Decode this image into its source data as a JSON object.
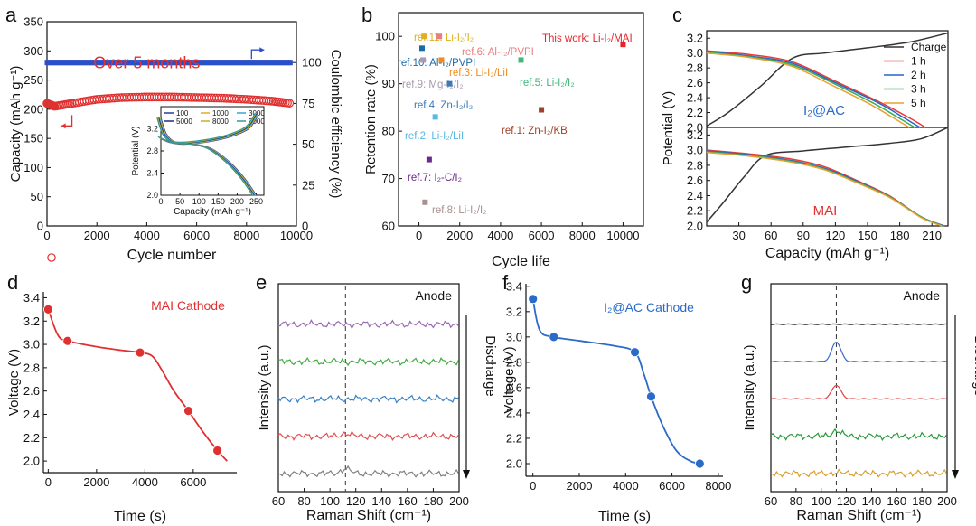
{
  "chart_data": [
    {
      "panel": "a",
      "type": "scatter",
      "xlabel": "Cycle number",
      "ylabel": "Capacity (mAh g⁻¹)",
      "ylabel_right": "Coulombic efficiency (%)",
      "xlim": [
        0,
        10000
      ],
      "ylim": [
        0,
        350
      ],
      "ylim_right": [
        0,
        125
      ],
      "xticks": [
        0,
        2000,
        4000,
        6000,
        8000,
        10000
      ],
      "yticks": [
        0,
        50,
        100,
        150,
        200,
        250,
        300,
        350
      ],
      "yticks_right": [
        0,
        25,
        50,
        75,
        100
      ],
      "annotation": "Over 5 months",
      "series": [
        {
          "name": "Capacity",
          "color": "#e03030",
          "x": [
            0,
            300,
            1000,
            2000,
            3000,
            4000,
            5000,
            6000,
            7000,
            8000,
            9000,
            9800
          ],
          "y": [
            210,
            205,
            210,
            217,
            220,
            221,
            221,
            220,
            219,
            217,
            214,
            210
          ]
        },
        {
          "name": "Coulombic efficiency",
          "color": "#2a4fc8",
          "x": [
            0,
            2000,
            4000,
            6000,
            8000,
            9800
          ],
          "y": [
            100,
            100,
            100,
            100,
            100,
            100
          ]
        }
      ],
      "inset": {
        "xlabel": "Capacity (mAh g⁻¹)",
        "ylabel": "Potential (V)",
        "xlim": [
          0,
          270
        ],
        "ylim": [
          2.0,
          3.6
        ],
        "xticks": [
          0,
          50,
          100,
          150,
          200,
          250
        ],
        "yticks": [
          2.0,
          2.4,
          2.8,
          3.2
        ],
        "legend": [
          {
            "label": "100",
            "color": "#2a3f9c"
          },
          {
            "label": "1000",
            "color": "#e0b020"
          },
          {
            "label": "3000",
            "color": "#30a8d8"
          },
          {
            "label": "5000",
            "color": "#1d2e78"
          },
          {
            "label": "8000",
            "color": "#c8b020"
          },
          {
            "label": "9000",
            "color": "#2c9aa0"
          }
        ],
        "charge": {
          "x": [
            0,
            25,
            60,
            120,
            180,
            230,
            255
          ],
          "y": [
            3.02,
            2.95,
            2.92,
            2.96,
            3.05,
            3.2,
            3.45
          ]
        },
        "discharge": {
          "x": [
            0,
            15,
            40,
            80,
            130,
            180,
            220,
            250
          ],
          "y": [
            3.4,
            3.1,
            2.95,
            2.93,
            2.85,
            2.6,
            2.3,
            2.0
          ]
        }
      }
    },
    {
      "panel": "b",
      "type": "scatter",
      "xlabel": "Cycle life",
      "ylabel": "Retention rate (%)",
      "xlim": [
        -1000,
        11000
      ],
      "ylim": [
        60,
        105
      ],
      "xticks": [
        0,
        2000,
        4000,
        6000,
        8000,
        10000
      ],
      "yticks": [
        60,
        70,
        80,
        90,
        100
      ],
      "points": [
        {
          "label": "This work: Li-I₂/MAI",
          "x": 10000,
          "y": 98.3,
          "color": "#e8232a"
        },
        {
          "label": "ref.11: Li-I₂/I₂",
          "x": 250,
          "y": 100,
          "color": "#e0b020"
        },
        {
          "label": "ref.6: Al-I₂/PVPI",
          "x": 1000,
          "y": 100,
          "color": "#e87e80"
        },
        {
          "label": "ref.10: Al-I₂/PVPI",
          "x": 150,
          "y": 97.5,
          "color": "#1a6aa8"
        },
        {
          "label": "ref.3: Li-I₂/LiI",
          "x": 1100,
          "y": 95,
          "color": "#f08c20"
        },
        {
          "label": "ref.5: Li-I₂/I₂",
          "x": 5000,
          "y": 95,
          "color": "#40b878"
        },
        {
          "label": "ref.9: Mg-I₂/I₂",
          "x": 200,
          "y": 95,
          "color": "#a89ab0"
        },
        {
          "label": "ref.4: Zn-I₂/I₂",
          "x": 1500,
          "y": 90,
          "color": "#3a7ab8"
        },
        {
          "label": "ref.2: Li-I₂/LiI",
          "x": 800,
          "y": 83,
          "color": "#58b8e0"
        },
        {
          "label": "ref.1: Zn-I₂/KB",
          "x": 6000,
          "y": 84.5,
          "color": "#a04028"
        },
        {
          "label": "ref.7: I₂-C/I₂",
          "x": 500,
          "y": 74,
          "color": "#6a2a88"
        },
        {
          "label": "ref.8: Li-I₂/I₂",
          "x": 300,
          "y": 65,
          "color": "#a89090"
        }
      ]
    },
    {
      "panel": "c",
      "type": "line",
      "xlabel": "Capacity (mAh g⁻¹)",
      "ylabel": "Potential (V)",
      "xlim": [
        0,
        225
      ],
      "ylim": [
        2.0,
        3.3
      ],
      "xticks": [
        30,
        60,
        90,
        120,
        150,
        180,
        210
      ],
      "yticks": [
        2.0,
        2.2,
        2.4,
        2.6,
        2.8,
        3.0,
        3.2
      ],
      "legend": [
        {
          "label": "Charge",
          "color": "#333333"
        },
        {
          "label": "1 h",
          "color": "#e83a3a"
        },
        {
          "label": "2 h",
          "color": "#2a64c8"
        },
        {
          "label": "3 h",
          "color": "#3aaa58"
        },
        {
          "label": "5 h",
          "color": "#e8a030"
        }
      ],
      "top_label": "I₂@AC",
      "bottom_label": "MAI",
      "top": {
        "charge": {
          "x": [
            0,
            20,
            50,
            80,
            110,
            150,
            190,
            225
          ],
          "y": [
            2.02,
            2.2,
            2.55,
            2.93,
            3.0,
            3.07,
            3.15,
            3.27
          ]
        },
        "discharge": [
          {
            "x": [
              0,
              40,
              80,
              120,
              160,
              190,
              204
            ],
            "y": [
              3.03,
              2.98,
              2.88,
              2.62,
              2.35,
              2.12,
              2.0
            ]
          },
          {
            "x": [
              0,
              40,
              80,
              120,
              160,
              185,
              199
            ],
            "y": [
              3.02,
              2.96,
              2.86,
              2.6,
              2.33,
              2.12,
              2.0
            ]
          },
          {
            "x": [
              0,
              40,
              80,
              120,
              155,
              180,
              194
            ],
            "y": [
              3.01,
              2.95,
              2.84,
              2.58,
              2.33,
              2.12,
              2.0
            ]
          },
          {
            "x": [
              0,
              40,
              80,
              115,
              150,
              175,
              189
            ],
            "y": [
              3.0,
              2.94,
              2.82,
              2.58,
              2.33,
              2.12,
              2.0
            ]
          }
        ]
      },
      "bottom": {
        "charge": {
          "x": [
            0,
            15,
            35,
            55,
            90,
            130,
            170,
            200,
            225
          ],
          "y": [
            2.05,
            2.3,
            2.65,
            2.93,
            2.99,
            3.04,
            3.09,
            3.15,
            3.3
          ]
        },
        "discharge": [
          {
            "x": [
              0,
              40,
              80,
              110,
              140,
              170,
              200,
              222
            ],
            "y": [
              3.0,
              2.95,
              2.88,
              2.78,
              2.6,
              2.4,
              2.12,
              2.0
            ]
          },
          {
            "x": [
              0,
              40,
              80,
              110,
              140,
              170,
              200,
              221
            ],
            "y": [
              2.99,
              2.94,
              2.86,
              2.76,
              2.59,
              2.39,
              2.12,
              2.0
            ]
          },
          {
            "x": [
              0,
              40,
              80,
              110,
              140,
              170,
              200,
              220
            ],
            "y": [
              2.98,
              2.93,
              2.85,
              2.75,
              2.58,
              2.39,
              2.12,
              2.0
            ]
          },
          {
            "x": [
              0,
              40,
              80,
              110,
              140,
              170,
              200,
              219
            ],
            "y": [
              2.97,
              2.92,
              2.84,
              2.74,
              2.57,
              2.38,
              2.11,
              2.0
            ]
          }
        ]
      }
    },
    {
      "panel": "d",
      "type": "line",
      "title": "MAI  Cathode",
      "xlabel": "Time (s)",
      "ylabel": "Voltage (V)",
      "xlim": [
        -200,
        7800
      ],
      "ylim": [
        1.9,
        3.45
      ],
      "xticks": [
        0,
        2000,
        4000,
        6000
      ],
      "yticks": [
        2.0,
        2.2,
        2.4,
        2.6,
        2.8,
        3.0,
        3.2,
        3.4
      ],
      "curve": {
        "x": [
          0,
          400,
          800,
          2000,
          3000,
          3800,
          4300,
          4700,
          5200,
          5800,
          6400,
          7000,
          7400
        ],
        "y": [
          3.3,
          3.08,
          3.03,
          2.98,
          2.95,
          2.93,
          2.9,
          2.78,
          2.6,
          2.43,
          2.25,
          2.09,
          2.0
        ]
      },
      "markers": {
        "x": [
          0,
          800,
          3800,
          5800,
          7000
        ],
        "y": [
          3.3,
          3.03,
          2.93,
          2.43,
          2.09
        ]
      },
      "color": "#e03030"
    },
    {
      "panel": "e",
      "type": "line",
      "xlabel": "Raman Shift (cm⁻¹)",
      "ylabel": "Intensity (a.u.)",
      "xlim": [
        60,
        200
      ],
      "xticks": [
        60,
        80,
        100,
        120,
        140,
        160,
        180,
        200
      ],
      "dashed_x": 112,
      "top_label": "Anode",
      "side_label": "Discharge",
      "traces": [
        {
          "color": "#9a6ab0",
          "offset": 5,
          "peak": 0.0
        },
        {
          "color": "#44aa44",
          "offset": 4,
          "peak": 0.0
        },
        {
          "color": "#3a80c0",
          "offset": 3,
          "peak": 0.0
        },
        {
          "color": "#e05050",
          "offset": 2,
          "peak": 0.15
        },
        {
          "color": "#808080",
          "offset": 1,
          "peak": 0.25
        }
      ]
    },
    {
      "panel": "f",
      "type": "line",
      "title": "I₂@AC Cathode",
      "xlabel": "Time (s)",
      "ylabel": "Voltage (V)",
      "xlim": [
        -300,
        8200
      ],
      "ylim": [
        1.9,
        3.42
      ],
      "xticks": [
        0,
        2000,
        4000,
        6000,
        8000
      ],
      "yticks": [
        2.0,
        2.2,
        2.4,
        2.6,
        2.8,
        3.0,
        3.2,
        3.4
      ],
      "curve": {
        "x": [
          0,
          300,
          900,
          2000,
          3500,
          4400,
          4800,
          5100,
          5600,
          6200,
          6800,
          7200
        ],
        "y": [
          3.3,
          3.05,
          3.0,
          2.97,
          2.93,
          2.88,
          2.7,
          2.53,
          2.3,
          2.1,
          2.02,
          2.0
        ]
      },
      "markers": {
        "x": [
          0,
          900,
          4400,
          5100,
          7200
        ],
        "y": [
          3.3,
          3.0,
          2.88,
          2.53,
          2.0
        ]
      },
      "color": "#2a6ac8"
    },
    {
      "panel": "g",
      "type": "line",
      "xlabel": "Raman Shift (cm⁻¹)",
      "ylabel": "Intensity (a.u.)",
      "xlim": [
        60,
        200
      ],
      "xticks": [
        60,
        80,
        100,
        120,
        140,
        160,
        180,
        200
      ],
      "dashed_x": 112,
      "top_label": "Anode",
      "side_label": "Discharge",
      "traces": [
        {
          "color": "#222222",
          "offset": 5,
          "peak": 0.0
        },
        {
          "color": "#3a6ac8",
          "offset": 4,
          "peak": 1.0
        },
        {
          "color": "#e04040",
          "offset": 3,
          "peak": 0.7
        },
        {
          "color": "#2a9a3a",
          "offset": 2,
          "peak": 0.3
        },
        {
          "color": "#d8a030",
          "offset": 1,
          "peak": 0.05
        }
      ]
    }
  ],
  "panel_letters": [
    "a",
    "b",
    "c",
    "d",
    "e",
    "f",
    "g"
  ]
}
